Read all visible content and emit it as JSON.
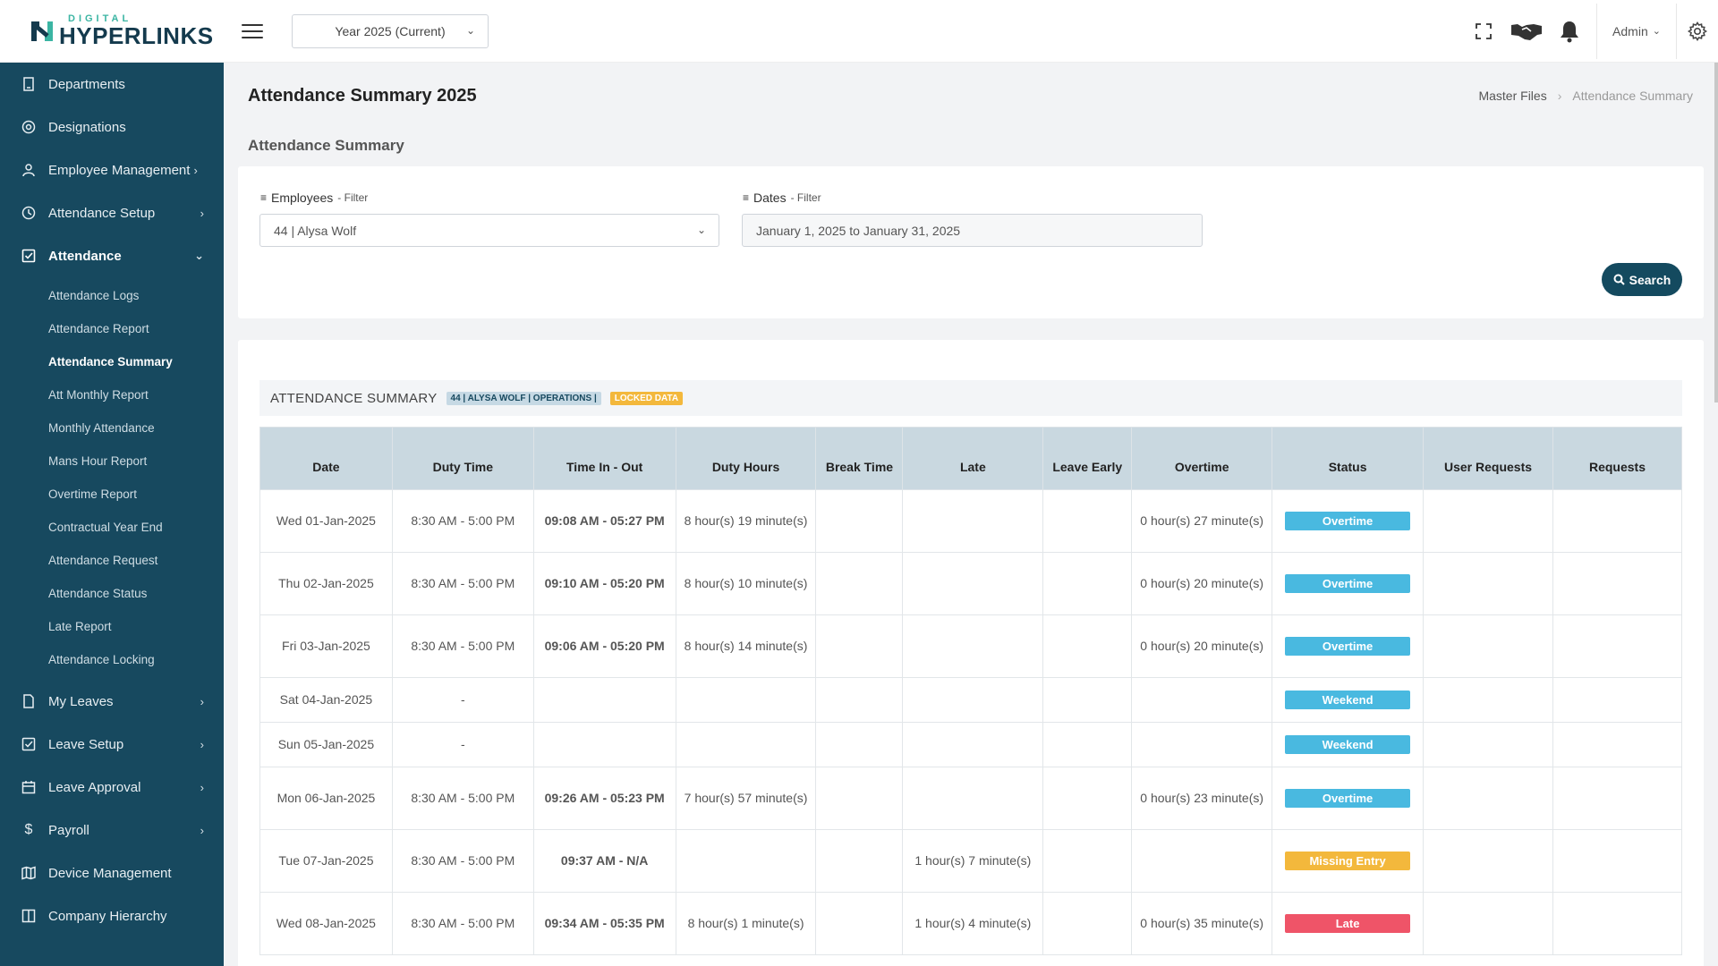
{
  "brand": {
    "small": "DIGITAL",
    "big": "HYPERLINKS",
    "accent": "#3bb5a3",
    "primary": "#143a4d"
  },
  "topbar": {
    "year_select": "Year 2025 (Current)",
    "admin_label": "Admin"
  },
  "sidebar": {
    "items": [
      {
        "label": "Departments",
        "icon": "building-icon"
      },
      {
        "label": "Designations",
        "icon": "target-icon"
      },
      {
        "label": "Employee Management",
        "icon": "user-icon"
      },
      {
        "label": "Attendance Setup",
        "icon": "clock-icon"
      },
      {
        "label": "Attendance",
        "icon": "check-square-icon"
      },
      {
        "label": "My Leaves",
        "icon": "file-icon"
      },
      {
        "label": "Leave Setup",
        "icon": "check-square-icon"
      },
      {
        "label": "Leave Approval",
        "icon": "calendar-icon"
      },
      {
        "label": "Payroll",
        "icon": "dollar-icon"
      },
      {
        "label": "Device Management",
        "icon": "map-icon"
      },
      {
        "label": "Company Hierarchy",
        "icon": "columns-icon"
      }
    ],
    "attendance_sub": [
      "Attendance Logs",
      "Attendance Report",
      "Attendance Summary",
      "Att Monthly Report",
      "Monthly Attendance",
      "Mans Hour Report",
      "Overtime Report",
      "Contractual Year End",
      "Attendance Request",
      "Attendance Status",
      "Late Report",
      "Attendance Locking"
    ]
  },
  "page": {
    "title": "Attendance Summary 2025",
    "breadcrumb": [
      "Master Files",
      "Attendance Summary"
    ],
    "section_title": "Attendance Summary"
  },
  "filters": {
    "employees_label": "Employees",
    "employees_suffix": "- Filter",
    "employees_value": "44 | Alysa Wolf",
    "dates_label": "Dates",
    "dates_suffix": "- Filter",
    "dates_value": "January 1, 2025 to January 31, 2025",
    "search_label": "Search"
  },
  "summary": {
    "title": "ATTENDANCE SUMMARY",
    "employee_badge": "44 | ALYSA WOLF | OPERATIONS |",
    "lock_badge": "LOCKED DATA"
  },
  "table": {
    "headers": [
      "Date",
      "Duty Time",
      "Time In - Out",
      "Duty Hours",
      "Break Time",
      "Late",
      "Leave Early",
      "Overtime",
      "Status",
      "User Requests",
      "Requests"
    ],
    "rows": [
      {
        "date": "Wed 01-Jan-2025",
        "duty": "8:30 AM - 5:00 PM",
        "inout": "09:08 AM - 05:27 PM",
        "hours": "8 hour(s) 19 minute(s)",
        "brk": "",
        "late": "",
        "early": "",
        "ot": "0 hour(s) 27 minute(s)",
        "status": "Overtime",
        "ureq": "",
        "req": ""
      },
      {
        "date": "Thu 02-Jan-2025",
        "duty": "8:30 AM - 5:00 PM",
        "inout": "09:10 AM - 05:20 PM",
        "hours": "8 hour(s) 10 minute(s)",
        "brk": "",
        "late": "",
        "early": "",
        "ot": "0 hour(s) 20 minute(s)",
        "status": "Overtime",
        "ureq": "",
        "req": ""
      },
      {
        "date": "Fri 03-Jan-2025",
        "duty": "8:30 AM - 5:00 PM",
        "inout": "09:06 AM - 05:20 PM",
        "hours": "8 hour(s) 14 minute(s)",
        "brk": "",
        "late": "",
        "early": "",
        "ot": "0 hour(s) 20 minute(s)",
        "status": "Overtime",
        "ureq": "",
        "req": ""
      },
      {
        "date": "Sat 04-Jan-2025",
        "duty": "-",
        "inout": "",
        "hours": "",
        "brk": "",
        "late": "",
        "early": "",
        "ot": "",
        "status": "Weekend",
        "ureq": "",
        "req": ""
      },
      {
        "date": "Sun 05-Jan-2025",
        "duty": "-",
        "inout": "",
        "hours": "",
        "brk": "",
        "late": "",
        "early": "",
        "ot": "",
        "status": "Weekend",
        "ureq": "",
        "req": ""
      },
      {
        "date": "Mon 06-Jan-2025",
        "duty": "8:30 AM - 5:00 PM",
        "inout": "09:26 AM - 05:23 PM",
        "hours": "7 hour(s) 57 minute(s)",
        "brk": "",
        "late": "",
        "early": "",
        "ot": "0 hour(s) 23 minute(s)",
        "status": "Overtime",
        "ureq": "",
        "req": ""
      },
      {
        "date": "Tue 07-Jan-2025",
        "duty": "8:30 AM - 5:00 PM",
        "inout": "09:37 AM - N/A",
        "hours": "",
        "brk": "",
        "late": "1 hour(s) 7 minute(s)",
        "early": "",
        "ot": "",
        "status": "Missing Entry",
        "ureq": "",
        "req": ""
      },
      {
        "date": "Wed 08-Jan-2025",
        "duty": "8:30 AM - 5:00 PM",
        "inout": "09:34 AM - 05:35 PM",
        "hours": "8 hour(s) 1 minute(s)",
        "brk": "",
        "late": "1 hour(s) 4 minute(s)",
        "early": "",
        "ot": "0 hour(s) 35 minute(s)",
        "status": "Late",
        "ureq": "",
        "req": ""
      }
    ]
  },
  "colors": {
    "sidebar": "#17495f",
    "header_row": "#c9d8e0",
    "status_blue": "#49b9e0",
    "status_orange": "#f3b83c",
    "status_red": "#ef5468",
    "text_red": "#e05c6e"
  }
}
